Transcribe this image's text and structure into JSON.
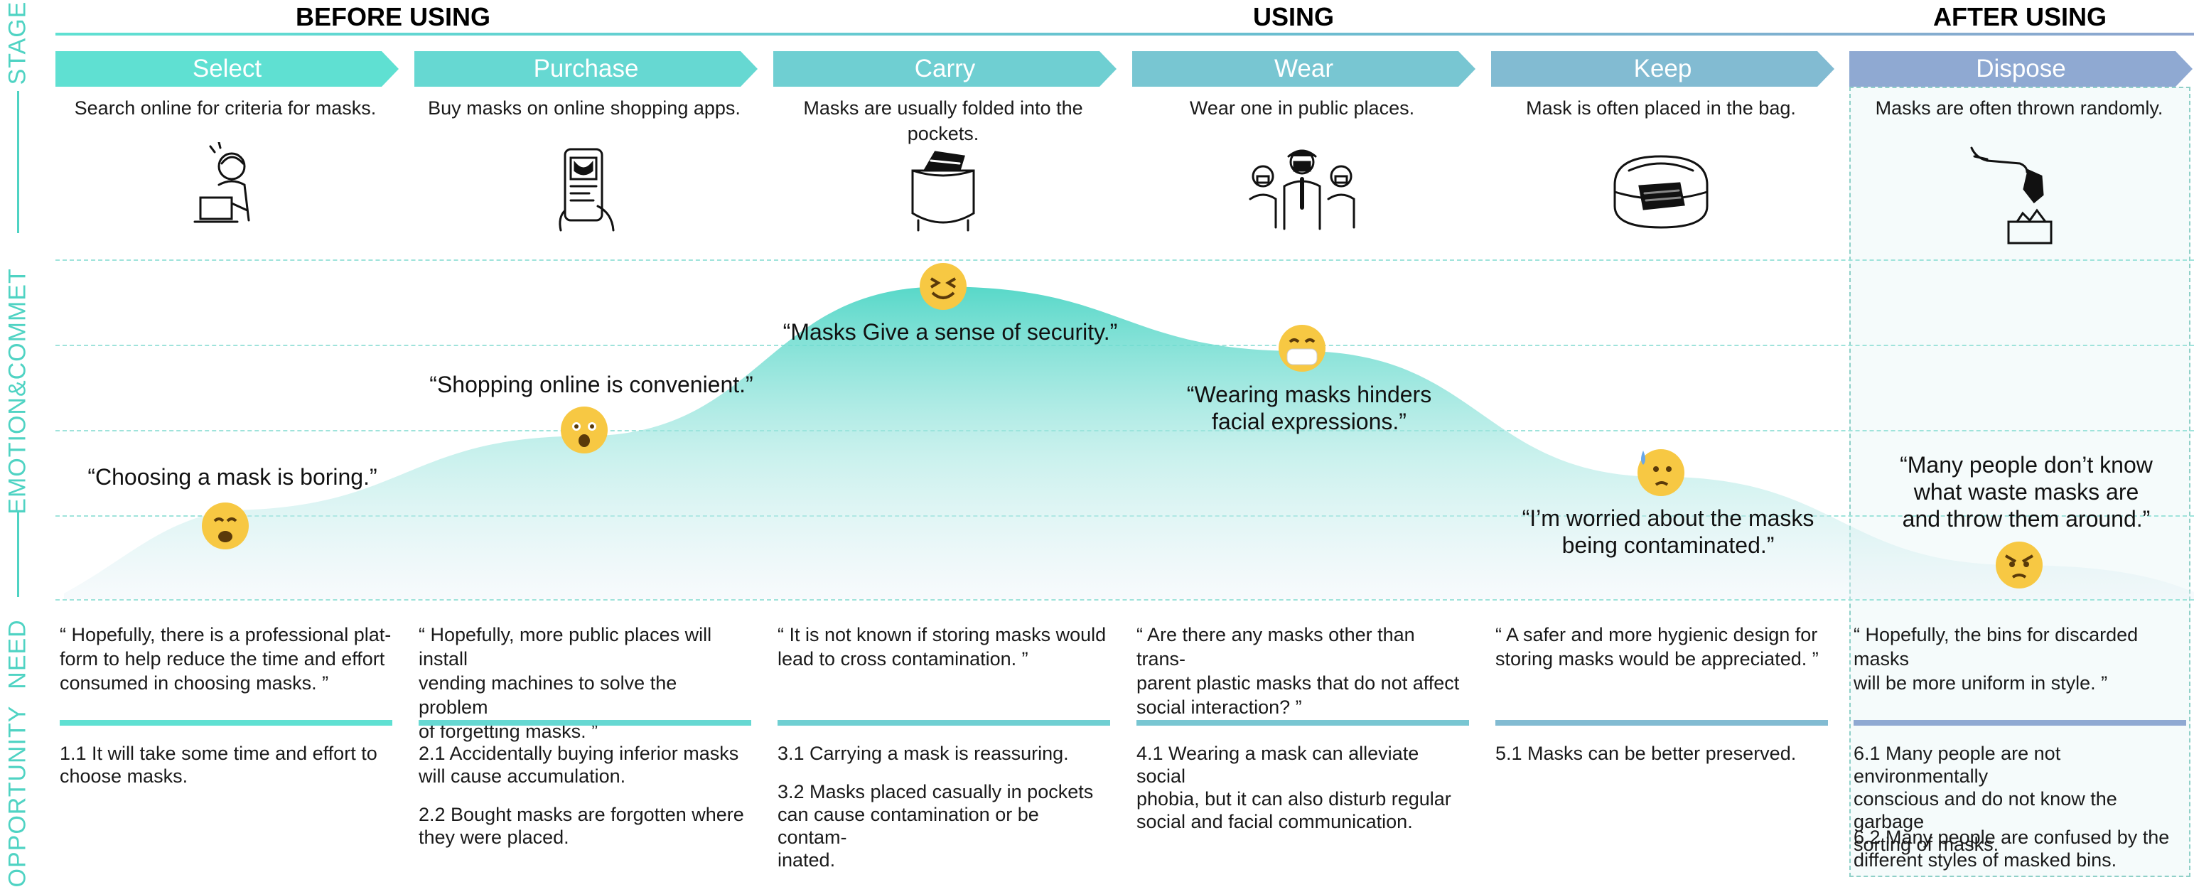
{
  "phases": {
    "before": "BEFORE USING",
    "using": "USING",
    "after": "AFTER USING"
  },
  "side_labels": {
    "stage": "STAGE",
    "emotion": "EMOTION&COMMET",
    "need": "NEED",
    "opportunity": "OPPORTUNITY"
  },
  "colors": {
    "accent_teal": "#5fe0d2",
    "accent_blue": "#8fa6cf",
    "curve_top": "#5fd9c9"
  },
  "stages": [
    {
      "name": "Select",
      "description": "Search online for criteria for masks.",
      "icon": "person-laptop-icon",
      "quote": "“Choosing a mask is boring.”",
      "emoji": "bored-face-icon",
      "emotion_level": 0.22,
      "need": "“ Hopefully, there is a professional plat-\nform to help reduce the time and effort\nconsumed in choosing masks. ”",
      "opportunities": [
        "1.1  It will take some time and effort to\nchoose masks."
      ],
      "color": "#5fe0d2"
    },
    {
      "name": "Purchase",
      "description": "Buy masks on online shopping apps.",
      "icon": "phone-shopping-icon",
      "quote": "“Shopping online is convenient.”",
      "emoji": "surprised-face-icon",
      "emotion_level": 0.48,
      "need": "“ Hopefully, more public places will install\nvending machines to solve the problem\nof forgetting masks. ”",
      "opportunities": [
        "2.1  Accidentally buying inferior masks\nwill cause accumulation.",
        "2.2  Bought masks are forgotten where\nthey were placed."
      ],
      "color": "#66d8d2"
    },
    {
      "name": "Carry",
      "description": "Masks are usually folded into the pockets.",
      "icon": "pocket-mask-icon",
      "quote": "“Masks Give a sense of security.”",
      "emoji": "happy-squint-face-icon",
      "emotion_level": 0.92,
      "need": "“ It is not known if storing masks would\nlead to cross contamination. ”",
      "opportunities": [
        "3.1  Carrying a mask is reassuring.",
        "3.2  Masks placed casually in pockets\ncan cause contamination or be contam-\ninated."
      ],
      "color": "#6fcfd2"
    },
    {
      "name": "Wear",
      "description": "Wear one in public places.",
      "icon": "people-wearing-masks-icon",
      "quote": "“Wearing masks hinders\nfacial expressions.”",
      "emoji": "masked-face-icon",
      "emotion_level": 0.73,
      "need": "“ Are there any masks other than trans-\nparent plastic masks that do not affect\nsocial interaction? ”",
      "opportunities": [
        "4.1  Wearing a mask can alleviate social\nphobia, but it can also disturb regular\nsocial and facial communication."
      ],
      "color": "#78c6d2"
    },
    {
      "name": "Keep",
      "description": "Mask is often placed in the bag.",
      "icon": "bag-mask-icon",
      "quote": "“I’m worried about the masks\nbeing contaminated.”",
      "emoji": "worried-sweat-face-icon",
      "emotion_level": 0.36,
      "need": "“ A safer and more hygienic design for\nstoring masks would be appreciated. ”",
      "opportunities": [
        "5.1  Masks can be better preserved."
      ],
      "color": "#82bbd2"
    },
    {
      "name": "Dispose",
      "description": "Masks are often thrown randomly.",
      "icon": "hand-dropping-mask-icon",
      "quote": "“Many people don’t know\nwhat waste masks are\nand throw them around.”",
      "emoji": "angry-face-icon",
      "emotion_level": 0.1,
      "need": "“ Hopefully, the bins for discarded masks\nwill be more uniform in style. ”",
      "opportunities": [
        "6.1  Many people are not environmentally\nconscious and do not know the garbage\nsorting of masks.",
        "6.2  Many people are confused by the\ndifferent styles of masked bins."
      ],
      "color": "#8fa9d2"
    }
  ]
}
